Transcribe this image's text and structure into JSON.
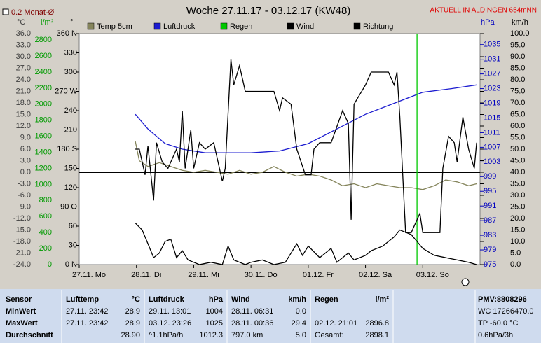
{
  "header": {
    "checkbox_label": "0.2 Monat-Ø",
    "title": "Woche 27.11.17 - 03.12.17 (KW48)",
    "status": "AKTUELL IN ALDINGEN 654mNN"
  },
  "chart_data": {
    "type": "line",
    "axes": {
      "temp": {
        "label": "°C",
        "color": "#404040",
        "ylim": [
          -24,
          36
        ],
        "yticks": [
          {
            "value": 36,
            "label": "36.0"
          },
          {
            "value": 33,
            "label": "33.0"
          },
          {
            "value": 30,
            "label": "30.0"
          },
          {
            "value": 27,
            "label": "27.0"
          },
          {
            "value": 24,
            "label": "24.0"
          },
          {
            "value": 21,
            "label": "21.0"
          },
          {
            "value": 18,
            "label": "18.0"
          },
          {
            "value": 15,
            "label": "15.0"
          },
          {
            "value": 12,
            "label": "12.0"
          },
          {
            "value": 9,
            "label": "9.0"
          },
          {
            "value": 6,
            "label": "6.0"
          },
          {
            "value": 3,
            "label": "3.0"
          },
          {
            "value": 0,
            "label": "0.0"
          },
          {
            "value": -3,
            "label": "-3.0"
          },
          {
            "value": -6,
            "label": "-6.0"
          },
          {
            "value": -9,
            "label": "-9.0"
          },
          {
            "value": -12,
            "label": "-12.0"
          },
          {
            "value": -15,
            "label": "-15.0"
          },
          {
            "value": -18,
            "label": "-18.0"
          },
          {
            "value": -21,
            "label": "-21.0"
          },
          {
            "value": -24,
            "label": "-24.0"
          }
        ]
      },
      "rain": {
        "label": "l/m²",
        "color": "#009a00",
        "ylim": [
          0,
          2880
        ],
        "yticks": [
          2800,
          2600,
          2400,
          2200,
          2000,
          1800,
          1600,
          1400,
          1200,
          1000,
          800,
          600,
          400,
          200,
          0
        ]
      },
      "dir": {
        "label": "°",
        "color": "#000000",
        "ylim": [
          0,
          360
        ],
        "yticks": [
          {
            "value": 360,
            "label": "360 N"
          },
          330,
          300,
          {
            "value": 270,
            "label": "270 W"
          },
          240,
          210,
          {
            "value": 180,
            "label": "180 S"
          },
          150,
          120,
          {
            "value": 90,
            "label": "90 O"
          },
          60,
          30,
          {
            "value": 0,
            "label": "0 N"
          }
        ]
      },
      "hpa": {
        "label": "hPa",
        "color": "#0000c0",
        "ylim": [
          975,
          1038
        ],
        "yticks": [
          1035,
          1031,
          1027,
          1023,
          1019,
          1015,
          1011,
          1007,
          1003,
          999,
          995,
          991,
          987,
          983,
          979,
          975
        ]
      },
      "kmh": {
        "label": "km/h",
        "color": "#000000",
        "ylim": [
          0,
          100
        ],
        "yticks": [
          {
            "value": 100,
            "label": "100.0"
          },
          {
            "value": 95,
            "label": "95.0"
          },
          {
            "value": 90,
            "label": "90.0"
          },
          {
            "value": 85,
            "label": "85.0"
          },
          {
            "value": 80,
            "label": "80.0"
          },
          {
            "value": 75,
            "label": "75.0"
          },
          {
            "value": 70,
            "label": "70.0"
          },
          {
            "value": 65,
            "label": "65.0"
          },
          {
            "value": 60,
            "label": "60.0"
          },
          {
            "value": 55,
            "label": "55.0"
          },
          {
            "value": 50,
            "label": "50.0"
          },
          {
            "value": 45,
            "label": "45.0"
          },
          {
            "value": 40,
            "label": "40.0"
          },
          {
            "value": 35,
            "label": "35.0"
          },
          {
            "value": 30,
            "label": "30.0"
          },
          {
            "value": 25,
            "label": "25.0"
          },
          {
            "value": 20,
            "label": "20.0"
          },
          {
            "value": 15,
            "label": "15.0"
          },
          {
            "value": 10,
            "label": "10.0"
          },
          {
            "value": 5,
            "label": "5.0"
          },
          {
            "value": 0,
            "label": "0.0"
          }
        ]
      }
    },
    "xlim": [
      0,
      7
    ],
    "xticks": [
      {
        "value": 0,
        "label": "27.11. Mo"
      },
      {
        "value": 1,
        "label": "28.11. Di"
      },
      {
        "value": 2,
        "label": "29.11. Mi"
      },
      {
        "value": 3,
        "label": "30.11. Do"
      },
      {
        "value": 4,
        "label": "01.12. Fr"
      },
      {
        "value": 5,
        "label": "02.12. Sa"
      },
      {
        "value": 6,
        "label": "03.12. So"
      }
    ],
    "series": [
      {
        "name": "Temp 5cm",
        "color": "#85855c",
        "axis": "temp",
        "x": [
          0.98,
          1.05,
          1.2,
          1.4,
          1.6,
          1.8,
          2.0,
          2.2,
          2.4,
          2.6,
          2.8,
          3.0,
          3.2,
          3.4,
          3.6,
          3.8,
          4.0,
          4.2,
          4.4,
          4.6,
          4.8,
          5.0,
          5.2,
          5.4,
          5.6,
          5.8,
          6.0,
          6.2,
          6.4,
          6.6,
          6.8,
          6.94
        ],
        "values": [
          8,
          3,
          1.5,
          2.5,
          1.5,
          0.5,
          0,
          0.5,
          0,
          -0.5,
          0.5,
          -0.5,
          0,
          1.5,
          0,
          -1,
          -0.5,
          -1,
          -2,
          -3.5,
          -3,
          -4,
          -3,
          -3.5,
          -4,
          -4,
          -4.5,
          -3.5,
          -2,
          -2.5,
          -3.5,
          -3
        ]
      },
      {
        "name": "Luftdruck",
        "color": "#1c1cd0",
        "axis": "hpa",
        "x": [
          0.98,
          1.2,
          1.5,
          1.8,
          2.2,
          3.0,
          3.5,
          4.0,
          4.5,
          5.0,
          5.5,
          6.0,
          6.5,
          6.94
        ],
        "values": [
          1016,
          1012,
          1008,
          1006.5,
          1005.5,
          1005.5,
          1006,
          1008,
          1012,
          1016,
          1019,
          1022,
          1023,
          1024
        ]
      },
      {
        "name": "Regen",
        "color": "#00c800",
        "axis": "rain",
        "x": [
          5.9,
          5.9
        ],
        "values": [
          0,
          2898.1
        ]
      },
      {
        "name": "Wind",
        "color": "#000000",
        "axis": "kmh",
        "x": [
          0.98,
          1.1,
          1.2,
          1.3,
          1.4,
          1.5,
          1.6,
          1.7,
          1.8,
          1.9,
          2.0,
          2.1,
          2.3,
          2.5,
          2.6,
          2.7,
          2.8,
          2.9,
          3.0,
          3.2,
          3.4,
          3.6,
          3.8,
          3.9,
          4.0,
          4.2,
          4.4,
          4.5,
          4.7,
          4.8,
          5.0,
          5.1,
          5.3,
          5.4,
          5.5,
          5.6,
          5.7,
          5.8,
          5.9,
          6.0,
          6.2,
          6.4,
          6.6,
          6.8,
          6.94
        ],
        "values": [
          18,
          15,
          9,
          3,
          5,
          10,
          11,
          3,
          6,
          2,
          1,
          0,
          1,
          0,
          8,
          2,
          1,
          0,
          1,
          2,
          0,
          1,
          9,
          4,
          8,
          3,
          7,
          1,
          5,
          2,
          4,
          6,
          8,
          10,
          12,
          15,
          14,
          13,
          10,
          7,
          4,
          3,
          2,
          1,
          0
        ]
      },
      {
        "name": "Richtung",
        "color": "#000000",
        "axis": "dir",
        "x": [
          0.98,
          1.05,
          1.1,
          1.15,
          1.2,
          1.3,
          1.35,
          1.45,
          1.55,
          1.7,
          1.75,
          1.8,
          1.85,
          1.95,
          2.0,
          2.1,
          2.2,
          2.35,
          2.5,
          2.55,
          2.65,
          2.7,
          2.8,
          2.9,
          3.0,
          3.2,
          3.4,
          3.5,
          3.55,
          3.7,
          3.8,
          3.95,
          4.05,
          4.1,
          4.2,
          4.4,
          4.6,
          4.7,
          4.75,
          4.8,
          5.0,
          5.1,
          5.2,
          5.4,
          5.5,
          5.55,
          5.6,
          5.7,
          5.8,
          5.85,
          5.95,
          6.0,
          6.1,
          6.3,
          6.35,
          6.45,
          6.55,
          6.6,
          6.7,
          6.8,
          6.9,
          6.94
        ],
        "values": [
          180,
          180,
          160,
          140,
          185,
          100,
          190,
          160,
          150,
          180,
          160,
          240,
          150,
          210,
          150,
          190,
          180,
          190,
          130,
          150,
          320,
          280,
          310,
          270,
          270,
          270,
          270,
          240,
          260,
          250,
          180,
          140,
          140,
          180,
          190,
          190,
          240,
          220,
          70,
          250,
          280,
          300,
          300,
          300,
          280,
          300,
          230,
          50,
          50,
          60,
          80,
          50,
          50,
          50,
          150,
          200,
          190,
          160,
          230,
          180,
          150,
          190
        ]
      }
    ]
  },
  "table": {
    "header": {
      "sensor": "Sensor",
      "columns": [
        {
          "name": "Lufttemp",
          "unit": "°C"
        },
        {
          "name": "Luftdruck",
          "unit": "hPa"
        },
        {
          "name": "Wind",
          "unit": "km/h"
        },
        {
          "name": "Regen",
          "unit": "l/m²"
        }
      ],
      "side": "PMV:8808296"
    },
    "rows": [
      {
        "label": "MinWert",
        "cells": [
          [
            "27.11.  23:42",
            "28.9"
          ],
          [
            "29.11.  13:01",
            "1004"
          ],
          [
            "28.11.  06:31",
            "0.0"
          ],
          null
        ],
        "side": "WC 17266470.0"
      },
      {
        "label": "MaxWert",
        "cells": [
          [
            "27.11.  23:42",
            "28.9"
          ],
          [
            "03.12.  23:26",
            "1025"
          ],
          [
            "28.11.  00:36",
            "29.4"
          ],
          [
            "02.12.  21:01",
            "2896.8"
          ]
        ],
        "side": "TP -60.0 °C"
      },
      {
        "label": "Durchschnitt",
        "cells": [
          [
            "28.90"
          ],
          [
            "^1.1hPa/h",
            "1012.3"
          ],
          [
            "797.0 km",
            "5.0"
          ],
          [
            "Gesamt:",
            "2898.1"
          ]
        ],
        "side": "0.6hPa/3h"
      }
    ]
  }
}
